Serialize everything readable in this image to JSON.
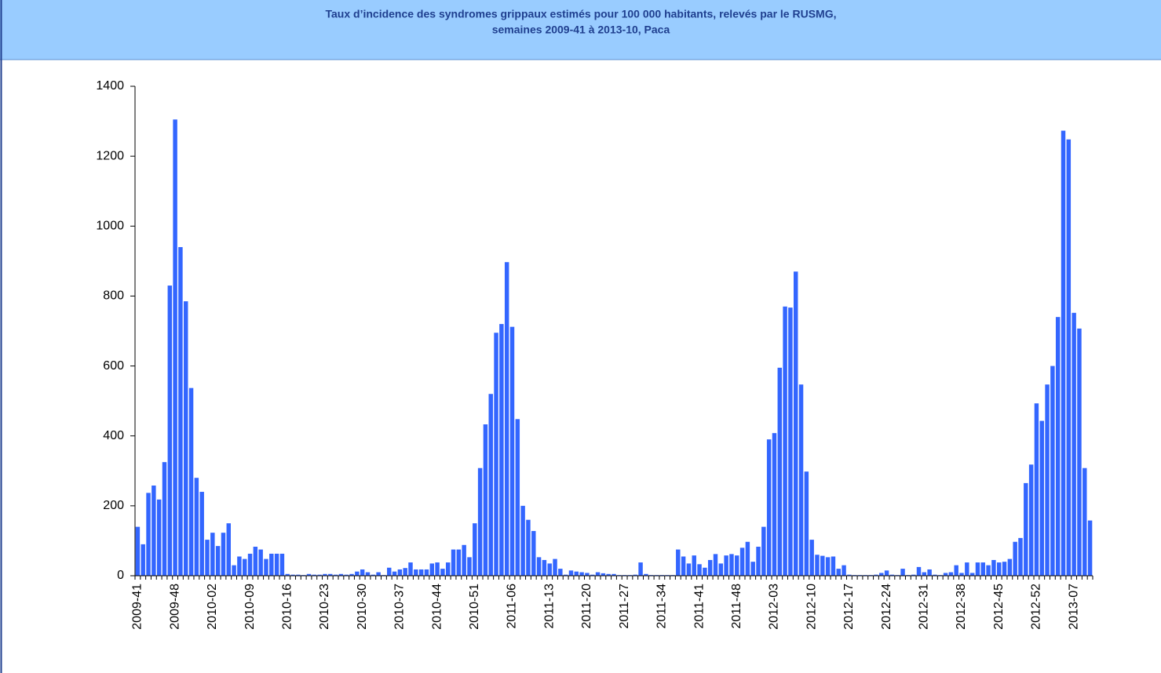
{
  "chart_data": {
    "type": "bar",
    "title": [
      "Taux d’incidence des syndromes grippaux estimés pour 100 000 habitants, relevés par le RUSMG,",
      "semaines 2009-41 à 2013-10, Paca"
    ],
    "categories": [
      "2009-41",
      null,
      null,
      null,
      null,
      null,
      null,
      "2009-48",
      null,
      null,
      null,
      null,
      null,
      null,
      "2010-02",
      null,
      null,
      null,
      null,
      null,
      null,
      "2010-09",
      null,
      null,
      null,
      null,
      null,
      null,
      "2010-16",
      null,
      null,
      null,
      null,
      null,
      null,
      "2010-23",
      null,
      null,
      null,
      null,
      null,
      null,
      "2010-30",
      null,
      null,
      null,
      null,
      null,
      null,
      "2010-37",
      null,
      null,
      null,
      null,
      null,
      null,
      "2010-44",
      null,
      null,
      null,
      null,
      null,
      null,
      "2010-51",
      null,
      null,
      null,
      null,
      null,
      null,
      "2011-06",
      null,
      null,
      null,
      null,
      null,
      null,
      "2011-13",
      null,
      null,
      null,
      null,
      null,
      null,
      "2011-20",
      null,
      null,
      null,
      null,
      null,
      null,
      "2011-27",
      null,
      null,
      null,
      null,
      null,
      null,
      "2011-34",
      null,
      null,
      null,
      null,
      null,
      null,
      "2011-41",
      null,
      null,
      null,
      null,
      null,
      null,
      "2011-48",
      null,
      null,
      null,
      null,
      null,
      null,
      "2012-03",
      null,
      null,
      null,
      null,
      null,
      null,
      "2012-10",
      null,
      null,
      null,
      null,
      null,
      null,
      "2012-17",
      null,
      null,
      null,
      null,
      null,
      null,
      "2012-24",
      null,
      null,
      null,
      null,
      null,
      null,
      "2012-31",
      null,
      null,
      null,
      null,
      null,
      null,
      "2012-38",
      null,
      null,
      null,
      null,
      null,
      null,
      "2012-45",
      null,
      null,
      null,
      null,
      null,
      null,
      "2012-52",
      null,
      null,
      null,
      null,
      null,
      null,
      "2013-07",
      null,
      null,
      null
    ],
    "values": [
      140,
      90,
      237,
      258,
      218,
      325,
      830,
      1305,
      940,
      785,
      537,
      280,
      240,
      103,
      123,
      85,
      123,
      150,
      30,
      55,
      48,
      63,
      83,
      75,
      48,
      63,
      63,
      63,
      5,
      3,
      3,
      2,
      5,
      3,
      3,
      5,
      5,
      3,
      5,
      3,
      5,
      12,
      18,
      10,
      3,
      10,
      2,
      23,
      12,
      18,
      22,
      38,
      18,
      18,
      18,
      35,
      38,
      20,
      38,
      75,
      75,
      88,
      53,
      150,
      308,
      433,
      520,
      695,
      720,
      897,
      712,
      448,
      200,
      160,
      128,
      53,
      45,
      35,
      48,
      20,
      3,
      15,
      12,
      10,
      8,
      3,
      10,
      7,
      5,
      5,
      2,
      2,
      2,
      3,
      38,
      5,
      2,
      2,
      2,
      2,
      2,
      75,
      55,
      35,
      58,
      33,
      23,
      45,
      62,
      35,
      58,
      62,
      58,
      80,
      97,
      40,
      83,
      140,
      390,
      408,
      595,
      770,
      767,
      870,
      547,
      298,
      103,
      60,
      57,
      53,
      55,
      20,
      30,
      3,
      2,
      2,
      2,
      2,
      3,
      8,
      15,
      3,
      2,
      20,
      2,
      3,
      25,
      10,
      18,
      3,
      2,
      8,
      10,
      30,
      8,
      38,
      8,
      38,
      38,
      30,
      45,
      38,
      40,
      48,
      97,
      108,
      265,
      318,
      493,
      443,
      547,
      600,
      740,
      1273,
      1248,
      752,
      707,
      308,
      158
    ],
    "color": "#3366ff",
    "ylim": [
      0,
      1400
    ],
    "yticks": [
      0,
      200,
      400,
      600,
      800,
      1000,
      1200,
      1400
    ]
  }
}
